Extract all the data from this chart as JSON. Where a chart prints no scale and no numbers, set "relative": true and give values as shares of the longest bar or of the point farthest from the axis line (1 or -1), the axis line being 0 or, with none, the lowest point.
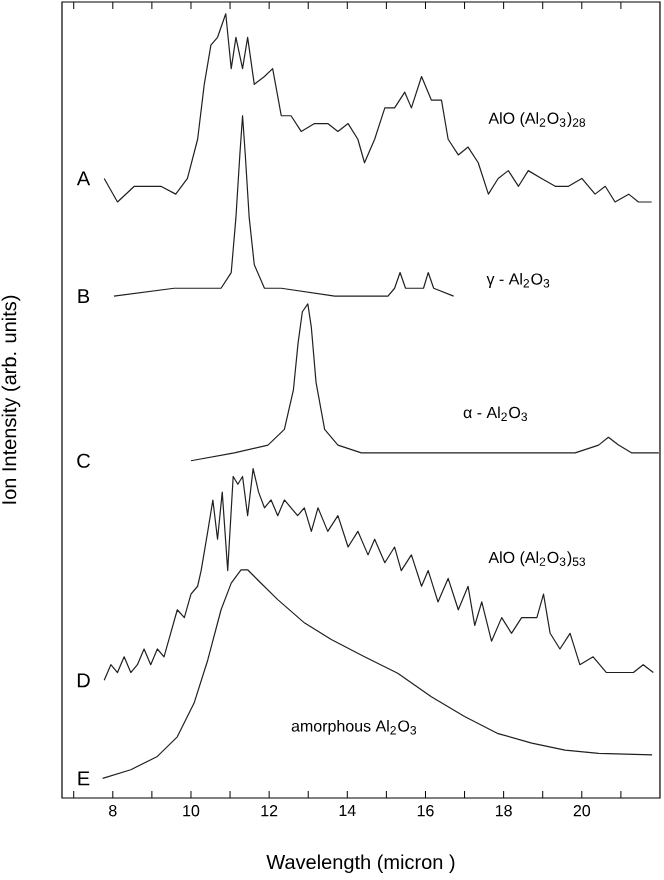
{
  "chart_data": {
    "type": "line",
    "relative": true,
    "xlabel": "Wavelength (micron )",
    "ylabel": "Ion Intensity (arb. units)",
    "xlim": [
      6.7,
      22.0
    ],
    "xticks": [
      {
        "value": 7,
        "label": null
      },
      8,
      {
        "value": 9,
        "label": null
      },
      10,
      {
        "value": 11,
        "label": null
      },
      12,
      {
        "value": 13,
        "label": null
      },
      14,
      {
        "value": 15,
        "label": null
      },
      16,
      {
        "value": 17,
        "label": null
      },
      18,
      {
        "value": 19,
        "label": null
      },
      20,
      {
        "value": 21,
        "label": null
      }
    ],
    "annotations": [
      "A",
      "B",
      "C",
      "D",
      "E"
    ],
    "series": [
      {
        "name": "AlO (Al$_{2}$O$_{3}$)$_{28}$",
        "color": "#231f20",
        "x": [
          7.78,
          8.12,
          8.55,
          8.89,
          9.23,
          9.61,
          9.91,
          10.17,
          10.34,
          10.51,
          10.68,
          10.89,
          11.03,
          11.15,
          11.32,
          11.45,
          11.62,
          11.88,
          12.09,
          12.31,
          12.56,
          12.82,
          13.16,
          13.5,
          13.76,
          14.02,
          14.27,
          14.44,
          14.7,
          14.96,
          15.21,
          15.47,
          15.64,
          15.9,
          16.15,
          16.41,
          16.58,
          16.84,
          17.09,
          17.35,
          17.61,
          17.86,
          18.12,
          18.38,
          18.63,
          18.97,
          19.32,
          19.66,
          20.0,
          20.34,
          20.6,
          20.85,
          21.2,
          21.45,
          21.79
        ],
        "values": [
          0.79,
          0.76,
          0.78,
          0.78,
          0.78,
          0.77,
          0.79,
          0.84,
          0.91,
          0.96,
          0.97,
          1.0,
          0.93,
          0.97,
          0.93,
          0.97,
          0.91,
          0.92,
          0.93,
          0.87,
          0.87,
          0.85,
          0.86,
          0.86,
          0.85,
          0.86,
          0.84,
          0.81,
          0.84,
          0.88,
          0.88,
          0.9,
          0.88,
          0.92,
          0.89,
          0.89,
          0.84,
          0.82,
          0.83,
          0.81,
          0.77,
          0.79,
          0.8,
          0.78,
          0.8,
          0.79,
          0.78,
          0.78,
          0.79,
          0.77,
          0.78,
          0.76,
          0.77,
          0.76,
          0.76
        ]
      },
      {
        "name": "γ - Al$_{2}$O$_{3}$",
        "color": "#231f20",
        "x": [
          8.03,
          9.57,
          9.78,
          10.0,
          10.77,
          11.03,
          11.15,
          11.25,
          11.32,
          11.39,
          11.49,
          11.62,
          11.88,
          12.31,
          13.68,
          15.04,
          15.21,
          15.35,
          15.49,
          15.81,
          15.95,
          16.07,
          16.21,
          16.72
        ],
        "values": [
          0.64,
          0.65,
          0.65,
          0.65,
          0.65,
          0.67,
          0.74,
          0.82,
          0.87,
          0.82,
          0.74,
          0.68,
          0.65,
          0.65,
          0.64,
          0.64,
          0.65,
          0.67,
          0.65,
          0.65,
          0.65,
          0.67,
          0.65,
          0.64
        ]
      },
      {
        "name": "α - Al$_{2}$O$_{3}$",
        "color": "#231f20",
        "x": [
          10.0,
          11.11,
          11.97,
          12.39,
          12.62,
          12.74,
          12.85,
          12.99,
          13.08,
          13.2,
          13.42,
          13.76,
          14.36,
          15.38,
          17.09,
          18.8,
          19.83,
          20.43,
          20.68,
          20.94,
          21.28,
          21.97
        ],
        "values": [
          0.43,
          0.44,
          0.45,
          0.47,
          0.52,
          0.58,
          0.62,
          0.63,
          0.6,
          0.53,
          0.47,
          0.45,
          0.44,
          0.44,
          0.44,
          0.44,
          0.44,
          0.45,
          0.46,
          0.45,
          0.44,
          0.44
        ]
      },
      {
        "name": "AlO (Al$_{2}$O$_{3}$)$_{53}$",
        "color": "#231f20",
        "x": [
          7.78,
          7.95,
          8.12,
          8.29,
          8.46,
          8.63,
          8.8,
          8.97,
          9.14,
          9.31,
          9.48,
          9.65,
          9.83,
          10.0,
          10.17,
          10.26,
          10.43,
          10.56,
          10.68,
          10.8,
          10.94,
          11.08,
          11.2,
          11.32,
          11.45,
          11.59,
          11.73,
          11.88,
          12.05,
          12.22,
          12.39,
          12.56,
          12.73,
          12.9,
          13.08,
          13.25,
          13.5,
          13.76,
          14.02,
          14.27,
          14.53,
          14.7,
          14.96,
          15.21,
          15.38,
          15.64,
          15.9,
          16.07,
          16.32,
          16.58,
          16.84,
          17.09,
          17.26,
          17.44,
          17.69,
          17.95,
          18.2,
          18.46,
          18.85,
          19.02,
          19.19,
          19.44,
          19.7,
          19.95,
          20.29,
          20.63,
          20.97,
          21.32,
          21.57,
          21.83
        ],
        "values": [
          0.15,
          0.17,
          0.16,
          0.18,
          0.16,
          0.17,
          0.19,
          0.17,
          0.19,
          0.18,
          0.21,
          0.24,
          0.23,
          0.26,
          0.27,
          0.29,
          0.34,
          0.38,
          0.33,
          0.39,
          0.29,
          0.41,
          0.4,
          0.41,
          0.36,
          0.42,
          0.39,
          0.37,
          0.38,
          0.36,
          0.38,
          0.37,
          0.36,
          0.37,
          0.34,
          0.37,
          0.34,
          0.36,
          0.32,
          0.34,
          0.31,
          0.33,
          0.3,
          0.32,
          0.29,
          0.31,
          0.27,
          0.29,
          0.25,
          0.28,
          0.24,
          0.27,
          0.22,
          0.25,
          0.2,
          0.23,
          0.21,
          0.23,
          0.23,
          0.26,
          0.21,
          0.19,
          0.21,
          0.17,
          0.18,
          0.16,
          0.16,
          0.16,
          0.17,
          0.16
        ]
      },
      {
        "name": "amorphous Al$_{2}$O$_{3}$",
        "color": "#231f20",
        "x": [
          7.74,
          8.46,
          9.14,
          9.65,
          10.08,
          10.43,
          10.77,
          11.03,
          11.28,
          11.45,
          11.71,
          12.22,
          12.91,
          13.59,
          14.44,
          15.29,
          16.15,
          17.0,
          17.86,
          18.72,
          19.57,
          20.43,
          21.8
        ],
        "values": [
          0.025,
          0.036,
          0.053,
          0.078,
          0.121,
          0.176,
          0.24,
          0.274,
          0.291,
          0.291,
          0.278,
          0.253,
          0.223,
          0.202,
          0.18,
          0.159,
          0.129,
          0.104,
          0.082,
          0.07,
          0.061,
          0.057,
          0.055
        ]
      }
    ]
  }
}
